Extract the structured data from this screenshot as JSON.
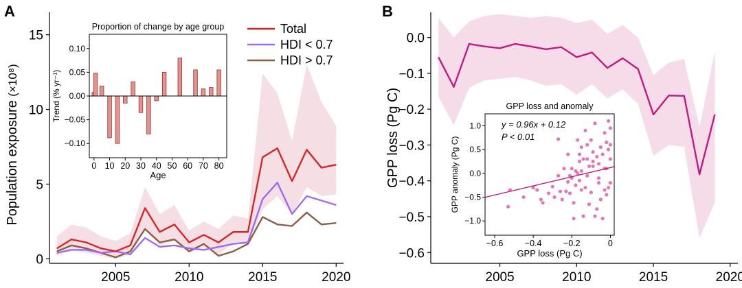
{
  "chart_data": [
    {
      "panel_label": "A",
      "type": "line",
      "xlabel": "",
      "ylabel": "Population exposure",
      "ylabel_unit": "(×10⁸)",
      "xlim": [
        2000.5,
        2020.5
      ],
      "ylim": [
        -0.3,
        16.5
      ],
      "xticks": [
        2005,
        2010,
        2015,
        2020
      ],
      "yticks": [
        0,
        5,
        10,
        15
      ],
      "grid": false,
      "legend": "top-right",
      "x": [
        2001,
        2002,
        2003,
        2004,
        2005,
        2006,
        2007,
        2008,
        2009,
        2010,
        2011,
        2012,
        2013,
        2014,
        2015,
        2016,
        2017,
        2018,
        2019,
        2020
      ],
      "series": [
        {
          "name": "Total",
          "color": "#d62728",
          "values": [
            0.7,
            1.3,
            1.1,
            0.7,
            0.5,
            0.9,
            3.4,
            1.8,
            2.3,
            1.1,
            1.6,
            1.1,
            1.8,
            1.8,
            6.8,
            7.4,
            5.2,
            7.3,
            6.1,
            6.3
          ]
        },
        {
          "name": "HDI < 0.7",
          "color": "#9b6cf0",
          "values": [
            0.4,
            0.6,
            0.6,
            0.4,
            0.5,
            0.3,
            1.4,
            0.8,
            0.9,
            0.7,
            0.6,
            0.8,
            1.0,
            1.1,
            4.0,
            5.1,
            3.0,
            4.2,
            3.9,
            3.6
          ]
        },
        {
          "name": "HDI > 0.7",
          "color": "#8c5f45",
          "values": [
            0.5,
            0.9,
            0.7,
            0.4,
            0.1,
            0.5,
            2.0,
            1.1,
            1.3,
            0.5,
            1.0,
            0.2,
            0.5,
            1.0,
            2.8,
            2.3,
            2.2,
            3.1,
            2.3,
            2.4
          ]
        }
      ],
      "band": {
        "color": "#f6dfe4",
        "lower": [
          0.2,
          0.6,
          0.4,
          0.2,
          0.0,
          0.3,
          1.9,
          0.9,
          1.2,
          0.4,
          0.8,
          0.3,
          1.0,
          1.0,
          3.3,
          4.2,
          3.0,
          4.8,
          4.2,
          4.3
        ],
        "upper": [
          1.5,
          2.3,
          2.1,
          1.5,
          1.2,
          1.7,
          4.8,
          3.0,
          3.6,
          1.9,
          2.5,
          2.0,
          2.9,
          2.7,
          12.4,
          11.1,
          7.9,
          13.0,
          10.5,
          8.9
        ]
      },
      "inset": {
        "type": "bar",
        "title": "Proportion of change by age group",
        "xlabel": "Age",
        "ylabel": "Trend (% yr⁻¹)",
        "xlim": [
          -3,
          85
        ],
        "ylim": [
          -0.13,
          0.13
        ],
        "xticks": [
          0,
          10,
          20,
          30,
          40,
          50,
          60,
          70,
          80
        ],
        "yticks": [
          -0.1,
          -0.05,
          0.0,
          0.05,
          0.1
        ],
        "ytick_labels": [
          "−0.10",
          "−0.05",
          "0.00",
          "0.05",
          "0.10"
        ],
        "bar_color": "#e8908a",
        "x": [
          0,
          1,
          5,
          10,
          15,
          20,
          25,
          30,
          35,
          40,
          45,
          55,
          65,
          70,
          75,
          80
        ],
        "values": [
          0.008,
          0.048,
          0.021,
          -0.088,
          -0.1,
          -0.015,
          0.03,
          -0.035,
          -0.08,
          -0.01,
          0.05,
          0.08,
          0.055,
          0.015,
          0.018,
          0.055
        ]
      }
    },
    {
      "panel_label": "B",
      "type": "line",
      "xlabel": "",
      "ylabel": "GPP loss (Pg C)",
      "xlim": [
        2000.5,
        2020.5
      ],
      "ylim": [
        -0.63,
        0.07
      ],
      "xticks": [
        2005,
        2010,
        2015,
        2020
      ],
      "yticks": [
        0.0,
        -0.1,
        -0.2,
        -0.3,
        -0.4,
        -0.5,
        -0.6
      ],
      "ytick_labels": [
        "0.0",
        "−0.1",
        "−0.2",
        "−0.3",
        "−0.4",
        "−0.5",
        "−0.6"
      ],
      "grid": false,
      "x": [
        2001,
        2002,
        2003,
        2004,
        2005,
        2006,
        2007,
        2008,
        2009,
        2010,
        2011,
        2012,
        2013,
        2014,
        2015,
        2016,
        2017,
        2018,
        2019
      ],
      "series": [
        {
          "color": "#c2187f",
          "values": [
            -0.055,
            -0.138,
            -0.018,
            -0.025,
            -0.03,
            -0.018,
            -0.025,
            -0.033,
            -0.027,
            -0.055,
            -0.042,
            -0.085,
            -0.058,
            -0.088,
            -0.215,
            -0.162,
            -0.163,
            -0.382,
            -0.215
          ]
        }
      ],
      "band": {
        "color": "#f6dce9",
        "lower": [
          -0.165,
          -0.245,
          -0.14,
          -0.12,
          -0.115,
          -0.11,
          -0.12,
          -0.135,
          -0.13,
          -0.16,
          -0.13,
          -0.17,
          -0.145,
          -0.185,
          -0.33,
          -0.3,
          -0.305,
          -0.56,
          -0.46
        ],
        "upper": [
          0.055,
          0.0,
          0.045,
          0.06,
          0.065,
          0.06,
          0.055,
          0.06,
          0.055,
          0.04,
          0.05,
          0.01,
          0.035,
          0.0,
          -0.105,
          -0.07,
          -0.06,
          -0.25,
          -0.04
        ]
      },
      "inset": {
        "type": "scatter",
        "title": "GPP loss and anomaly",
        "xlabel": "GPP loss (Pg C)",
        "ylabel": "GPP anomaly (Pg C)",
        "xlim": [
          -0.65,
          0.02
        ],
        "ylim": [
          -1.3,
          1.25
        ],
        "xticks": [
          -0.6,
          -0.4,
          -0.2,
          0
        ],
        "xtick_labels": [
          "−0.6",
          "−0.4",
          "−0.2",
          "0"
        ],
        "yticks": [
          1.0,
          0.5,
          0.0,
          -0.5,
          -1.0
        ],
        "ytick_labels": [
          "1.0",
          "0.5",
          "0.0",
          "−0.5",
          "−1.0"
        ],
        "point_color": "#d94aa0",
        "equation": "y = 0.96x + 0.12",
        "p_value": "P < 0.01",
        "fit": {
          "slope": 0.96,
          "intercept": 0.12,
          "x_range": [
            -0.65,
            0.02
          ]
        },
        "points": [
          [
            -0.53,
            -0.7
          ],
          [
            -0.52,
            -0.35
          ],
          [
            -0.45,
            -0.5
          ],
          [
            -0.4,
            -0.3
          ],
          [
            -0.38,
            -0.35
          ],
          [
            -0.36,
            -0.55
          ],
          [
            -0.35,
            -0.62
          ],
          [
            -0.32,
            -0.42
          ],
          [
            -0.3,
            -0.28
          ],
          [
            -0.29,
            -0.5
          ],
          [
            -0.27,
            0.72
          ],
          [
            -0.27,
            -0.05
          ],
          [
            -0.26,
            -0.38
          ],
          [
            -0.25,
            -0.55
          ],
          [
            -0.23,
            -0.38
          ],
          [
            -0.22,
            -0.18
          ],
          [
            -0.21,
            -0.42
          ],
          [
            -0.2,
            0.1
          ],
          [
            -0.2,
            -0.1
          ],
          [
            -0.19,
            -0.62
          ],
          [
            -0.18,
            -0.25
          ],
          [
            -0.17,
            0.0
          ],
          [
            -0.16,
            0.25
          ],
          [
            -0.16,
            0.4
          ],
          [
            -0.15,
            0.55
          ],
          [
            -0.15,
            -0.35
          ],
          [
            -0.14,
            0.3
          ],
          [
            -0.13,
            -0.3
          ],
          [
            -0.12,
            0.6
          ],
          [
            -0.11,
            0.15
          ],
          [
            -0.1,
            0.7
          ],
          [
            -0.1,
            -0.4
          ],
          [
            -0.09,
            0.45
          ],
          [
            -0.08,
            -0.9
          ],
          [
            -0.07,
            0.35
          ],
          [
            -0.06,
            0.2
          ],
          [
            -0.05,
            -0.55
          ],
          [
            -0.04,
            0.4
          ],
          [
            -0.03,
            0.1
          ],
          [
            -0.02,
            0.65
          ],
          [
            -0.02,
            -0.45
          ],
          [
            -0.01,
            0.5
          ],
          [
            -0.01,
            -0.3
          ],
          [
            0.0,
            0.95
          ],
          [
            0.0,
            0.3
          ],
          [
            0.0,
            -0.2
          ],
          [
            -0.03,
            0.85
          ],
          [
            -0.06,
            -0.2
          ],
          [
            -0.09,
            0.15
          ],
          [
            -0.12,
            -0.05
          ],
          [
            -0.15,
            0.05
          ],
          [
            -0.18,
            0.05
          ],
          [
            -0.21,
            -0.05
          ],
          [
            -0.24,
            0.1
          ],
          [
            -0.11,
            -0.65
          ],
          [
            -0.07,
            -0.75
          ],
          [
            -0.04,
            -0.95
          ],
          [
            -0.02,
            0.1
          ],
          [
            -0.01,
            1.1
          ],
          [
            -0.08,
            1.05
          ],
          [
            -0.13,
            0.9
          ],
          [
            -0.17,
            0.7
          ],
          [
            -0.14,
            -0.9
          ],
          [
            -0.19,
            -0.95
          ],
          [
            -0.22,
            0.4
          ],
          [
            -0.05,
            0.55
          ],
          [
            -0.16,
            -0.15
          ],
          [
            -0.12,
            0.3
          ],
          [
            -0.09,
            0.25
          ],
          [
            -0.06,
            -0.1
          ],
          [
            -0.03,
            -0.35
          ],
          [
            0.0,
            0.6
          ]
        ]
      }
    }
  ]
}
